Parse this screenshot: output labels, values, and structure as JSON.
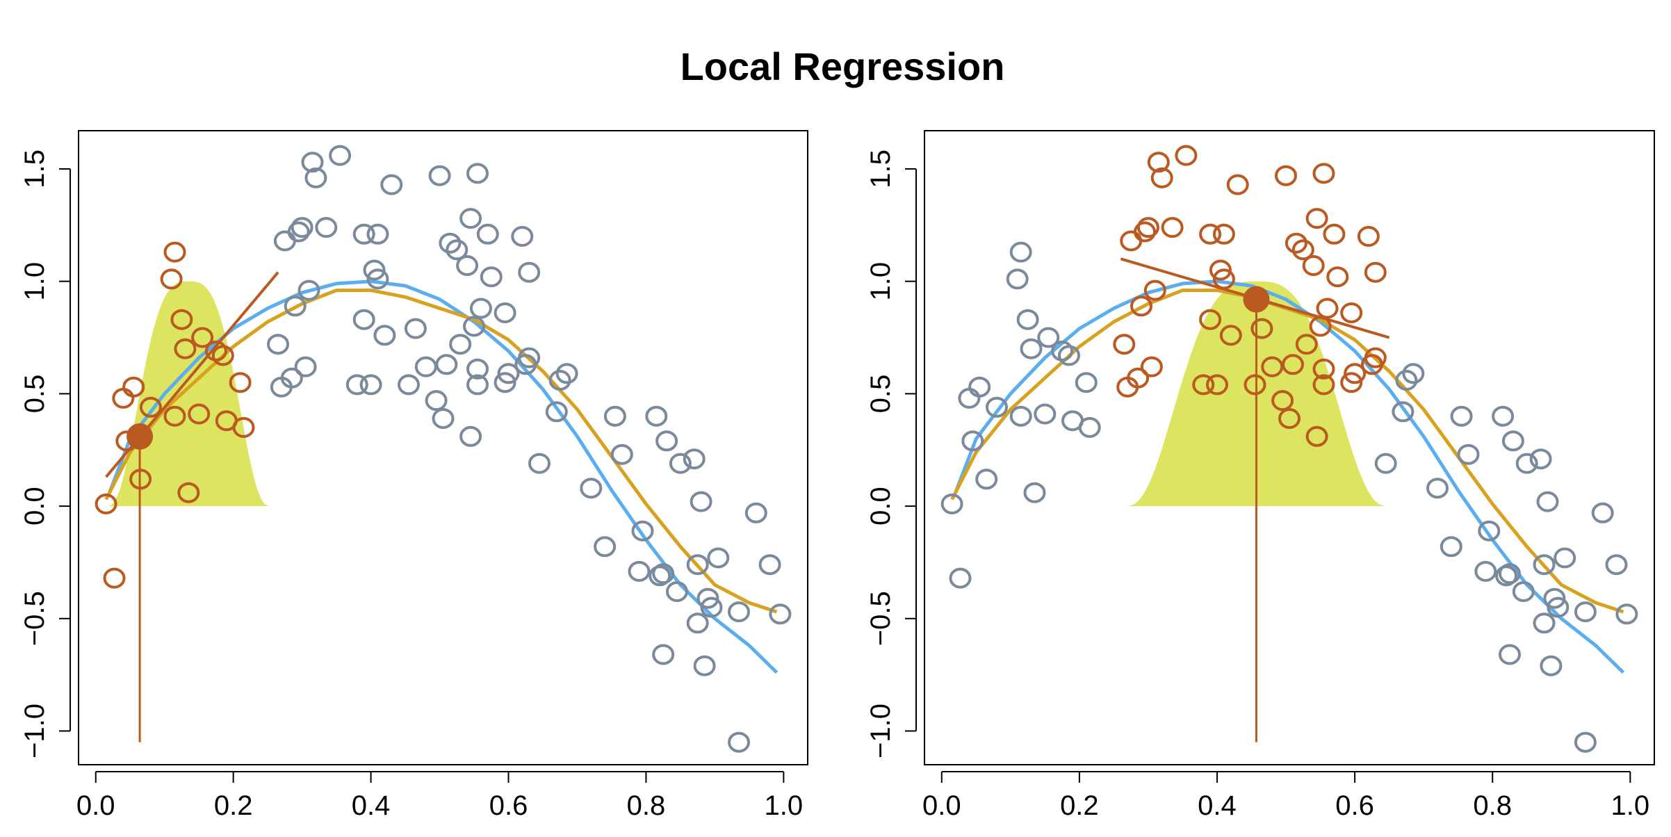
{
  "title": "Local Regression",
  "colors": {
    "points": "#7a8a9c",
    "local_points": "#bb5a20",
    "true_curve": "#5aaef0",
    "fit_curve": "#d9a120",
    "kernel": "#dde45f",
    "local_line": "#bb5a20",
    "target": "#bb5a20"
  },
  "chart_data": [
    {
      "type": "scatter",
      "panel": "left",
      "xlim": [
        -0.025,
        1.035
      ],
      "ylim": [
        -1.15,
        1.67
      ],
      "x_ticks": [
        {
          "value": 0.0,
          "label": "0.0"
        },
        {
          "value": 0.2,
          "label": "0.2"
        },
        {
          "value": 0.4,
          "label": "0.4"
        },
        {
          "value": 0.6,
          "label": "0.6"
        },
        {
          "value": 0.8,
          "label": "0.8"
        },
        {
          "value": 1.0,
          "label": "1.0"
        }
      ],
      "y_ticks": [
        {
          "value": -1.0,
          "label": "−1.0"
        },
        {
          "value": -0.5,
          "label": "−0.5"
        },
        {
          "value": 0.0,
          "label": "0.0"
        },
        {
          "value": 0.5,
          "label": "0.5"
        },
        {
          "value": 1.0,
          "label": "1.0"
        },
        {
          "value": 1.5,
          "label": "1.5"
        }
      ],
      "target": {
        "x": 0.064,
        "y": 0.31
      },
      "neighborhood": [
        0.01,
        0.26
      ],
      "kernel_range": [
        0.015,
        0.255
      ],
      "local_line": {
        "x": [
          0.015,
          0.265
        ],
        "y": [
          0.13,
          1.04
        ]
      }
    },
    {
      "type": "scatter",
      "panel": "right",
      "xlim": [
        -0.025,
        1.035
      ],
      "ylim": [
        -1.15,
        1.67
      ],
      "x_ticks": [
        {
          "value": 0.0,
          "label": "0.0"
        },
        {
          "value": 0.2,
          "label": "0.2"
        },
        {
          "value": 0.4,
          "label": "0.4"
        },
        {
          "value": 0.6,
          "label": "0.6"
        },
        {
          "value": 0.8,
          "label": "0.8"
        },
        {
          "value": 1.0,
          "label": "1.0"
        }
      ],
      "y_ticks": [
        {
          "value": -1.0,
          "label": "−1.0"
        },
        {
          "value": -0.5,
          "label": "−0.5"
        },
        {
          "value": 0.0,
          "label": "0.0"
        },
        {
          "value": 0.5,
          "label": "0.5"
        },
        {
          "value": 1.0,
          "label": "1.0"
        },
        {
          "value": 1.5,
          "label": "1.5"
        }
      ],
      "target": {
        "x": 0.457,
        "y": 0.92
      },
      "neighborhood": [
        0.26,
        0.64
      ],
      "kernel_range": [
        0.265,
        0.65
      ],
      "local_line": {
        "x": [
          0.26,
          0.65
        ],
        "y": [
          1.1,
          0.75
        ]
      }
    }
  ],
  "points": [
    [
      0.015,
      0.01
    ],
    [
      0.027,
      -0.32
    ],
    [
      0.04,
      0.48
    ],
    [
      0.045,
      0.29
    ],
    [
      0.055,
      0.53
    ],
    [
      0.065,
      0.12
    ],
    [
      0.08,
      0.44
    ],
    [
      0.11,
      1.01
    ],
    [
      0.115,
      1.13
    ],
    [
      0.115,
      0.4
    ],
    [
      0.125,
      0.83
    ],
    [
      0.13,
      0.7
    ],
    [
      0.135,
      0.06
    ],
    [
      0.15,
      0.41
    ],
    [
      0.155,
      0.75
    ],
    [
      0.175,
      0.69
    ],
    [
      0.185,
      0.67
    ],
    [
      0.19,
      0.38
    ],
    [
      0.21,
      0.55
    ],
    [
      0.215,
      0.35
    ],
    [
      0.265,
      0.72
    ],
    [
      0.27,
      0.53
    ],
    [
      0.275,
      1.18
    ],
    [
      0.285,
      0.57
    ],
    [
      0.29,
      0.89
    ],
    [
      0.295,
      1.22
    ],
    [
      0.3,
      1.24
    ],
    [
      0.305,
      0.62
    ],
    [
      0.31,
      0.96
    ],
    [
      0.315,
      1.53
    ],
    [
      0.32,
      1.46
    ],
    [
      0.335,
      1.24
    ],
    [
      0.355,
      1.56
    ],
    [
      0.38,
      0.54
    ],
    [
      0.39,
      1.21
    ],
    [
      0.39,
      0.83
    ],
    [
      0.4,
      0.54
    ],
    [
      0.405,
      1.05
    ],
    [
      0.41,
      1.21
    ],
    [
      0.41,
      1.01
    ],
    [
      0.42,
      0.76
    ],
    [
      0.43,
      1.43
    ],
    [
      0.455,
      0.54
    ],
    [
      0.465,
      0.79
    ],
    [
      0.48,
      0.62
    ],
    [
      0.495,
      0.47
    ],
    [
      0.5,
      1.47
    ],
    [
      0.505,
      0.39
    ],
    [
      0.51,
      0.63
    ],
    [
      0.515,
      1.17
    ],
    [
      0.525,
      1.14
    ],
    [
      0.53,
      0.72
    ],
    [
      0.54,
      1.07
    ],
    [
      0.545,
      0.31
    ],
    [
      0.545,
      1.28
    ],
    [
      0.55,
      0.8
    ],
    [
      0.555,
      0.61
    ],
    [
      0.555,
      0.54
    ],
    [
      0.555,
      1.48
    ],
    [
      0.56,
      0.88
    ],
    [
      0.57,
      1.21
    ],
    [
      0.575,
      1.02
    ],
    [
      0.595,
      0.55
    ],
    [
      0.595,
      0.86
    ],
    [
      0.6,
      0.59
    ],
    [
      0.62,
      1.2
    ],
    [
      0.625,
      0.63
    ],
    [
      0.63,
      1.04
    ],
    [
      0.63,
      0.66
    ],
    [
      0.645,
      0.19
    ],
    [
      0.67,
      0.42
    ],
    [
      0.675,
      0.56
    ],
    [
      0.685,
      0.59
    ],
    [
      0.72,
      0.08
    ],
    [
      0.74,
      -0.18
    ],
    [
      0.755,
      0.4
    ],
    [
      0.765,
      0.23
    ],
    [
      0.79,
      -0.29
    ],
    [
      0.795,
      -0.11
    ],
    [
      0.815,
      0.4
    ],
    [
      0.82,
      -0.31
    ],
    [
      0.825,
      -0.3
    ],
    [
      0.825,
      -0.66
    ],
    [
      0.83,
      0.29
    ],
    [
      0.845,
      -0.38
    ],
    [
      0.85,
      0.19
    ],
    [
      0.87,
      0.21
    ],
    [
      0.875,
      -0.26
    ],
    [
      0.875,
      -0.52
    ],
    [
      0.88,
      0.02
    ],
    [
      0.885,
      -0.71
    ],
    [
      0.89,
      -0.41
    ],
    [
      0.895,
      -0.45
    ],
    [
      0.905,
      -0.23
    ],
    [
      0.935,
      -0.47
    ],
    [
      0.935,
      -1.05
    ],
    [
      0.96,
      -0.03
    ],
    [
      0.98,
      -0.26
    ],
    [
      0.995,
      -0.48
    ]
  ],
  "true_curve": [
    [
      0.02,
      0.06
    ],
    [
      0.05,
      0.3
    ],
    [
      0.1,
      0.5
    ],
    [
      0.15,
      0.66
    ],
    [
      0.2,
      0.79
    ],
    [
      0.25,
      0.88
    ],
    [
      0.3,
      0.95
    ],
    [
      0.35,
      0.99
    ],
    [
      0.4,
      1.0
    ],
    [
      0.45,
      0.98
    ],
    [
      0.5,
      0.92
    ],
    [
      0.55,
      0.82
    ],
    [
      0.6,
      0.69
    ],
    [
      0.65,
      0.52
    ],
    [
      0.7,
      0.31
    ],
    [
      0.75,
      0.07
    ],
    [
      0.8,
      -0.15
    ],
    [
      0.85,
      -0.35
    ],
    [
      0.9,
      -0.5
    ],
    [
      0.95,
      -0.62
    ],
    [
      0.99,
      -0.74
    ]
  ],
  "fit_curve": [
    [
      0.015,
      0.03
    ],
    [
      0.05,
      0.24
    ],
    [
      0.1,
      0.43
    ],
    [
      0.15,
      0.57
    ],
    [
      0.2,
      0.71
    ],
    [
      0.25,
      0.82
    ],
    [
      0.3,
      0.9
    ],
    [
      0.35,
      0.96
    ],
    [
      0.4,
      0.96
    ],
    [
      0.45,
      0.93
    ],
    [
      0.5,
      0.88
    ],
    [
      0.55,
      0.83
    ],
    [
      0.6,
      0.74
    ],
    [
      0.65,
      0.6
    ],
    [
      0.7,
      0.43
    ],
    [
      0.75,
      0.22
    ],
    [
      0.8,
      0.01
    ],
    [
      0.85,
      -0.18
    ],
    [
      0.9,
      -0.35
    ],
    [
      0.95,
      -0.43
    ],
    [
      0.99,
      -0.47
    ]
  ]
}
